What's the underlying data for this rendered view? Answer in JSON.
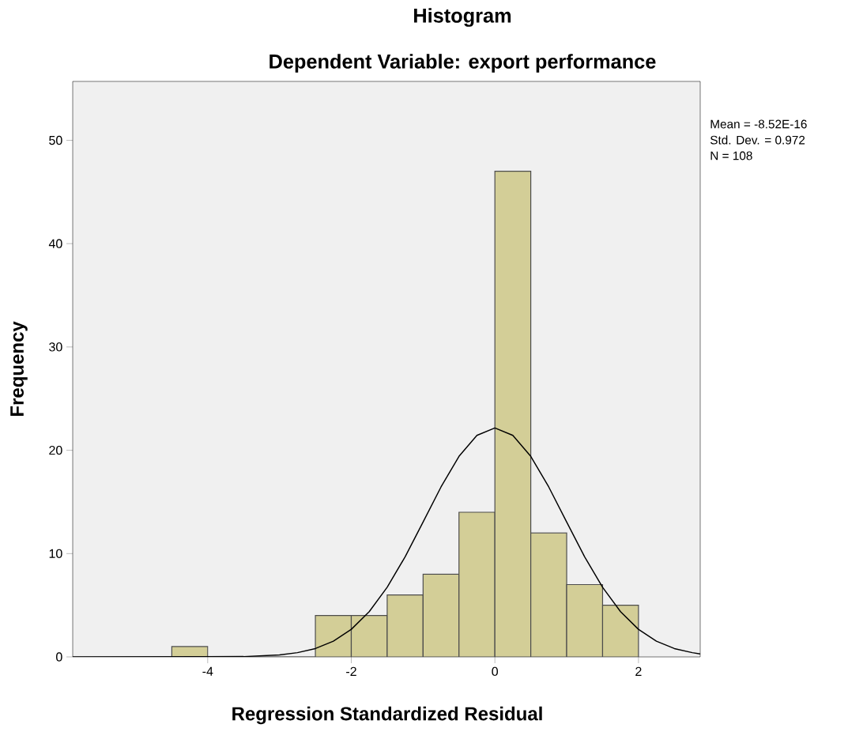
{
  "chart_data": {
    "type": "histogram",
    "title": "Histogram",
    "subtitle": "Dependent Variable: export performance",
    "xlabel": "Regression Standardized Residual",
    "ylabel": "Frequency",
    "bins": [
      -4.5,
      -4,
      -3.5,
      -3,
      -2.5,
      -2,
      -1.5,
      -1,
      -0.5,
      0,
      0.5,
      1,
      1.5,
      2
    ],
    "values": [
      1,
      0,
      0,
      0,
      4,
      4,
      6,
      8,
      14,
      47,
      12,
      7,
      5
    ],
    "color": "#d3ce97",
    "series": [
      {
        "type": "line",
        "color": "#000000",
        "x": [
          -5.88,
          -3.5,
          -3,
          -2.75,
          -2.5,
          -2.25,
          -2,
          -1.75,
          -1.5,
          -1.25,
          -1,
          -0.75,
          -0.5,
          -0.25,
          0,
          0.25,
          0.5,
          0.75,
          1,
          1.25,
          1.5,
          1.75,
          2,
          2.25,
          2.5,
          2.75,
          2.86
        ],
        "values": [
          0,
          0.03,
          0.19,
          0.41,
          0.81,
          1.52,
          2.67,
          4.38,
          6.74,
          9.69,
          13.05,
          16.45,
          19.41,
          21.44,
          22.16,
          21.44,
          19.41,
          16.45,
          13.05,
          9.69,
          6.74,
          4.38,
          2.67,
          1.52,
          0.81,
          0.41,
          0.29
        ]
      }
    ],
    "xlim": [
      -5.88,
      2.86
    ],
    "ylim": [
      0,
      55.7
    ],
    "xticks": [
      -4,
      -2,
      0,
      2
    ],
    "yticks": [
      0,
      10,
      20,
      30,
      40,
      50
    ],
    "grid": false,
    "annotations": [
      "Mean = -8.52E-16",
      "Std. Dev. = 0.972",
      "N = 108"
    ]
  }
}
